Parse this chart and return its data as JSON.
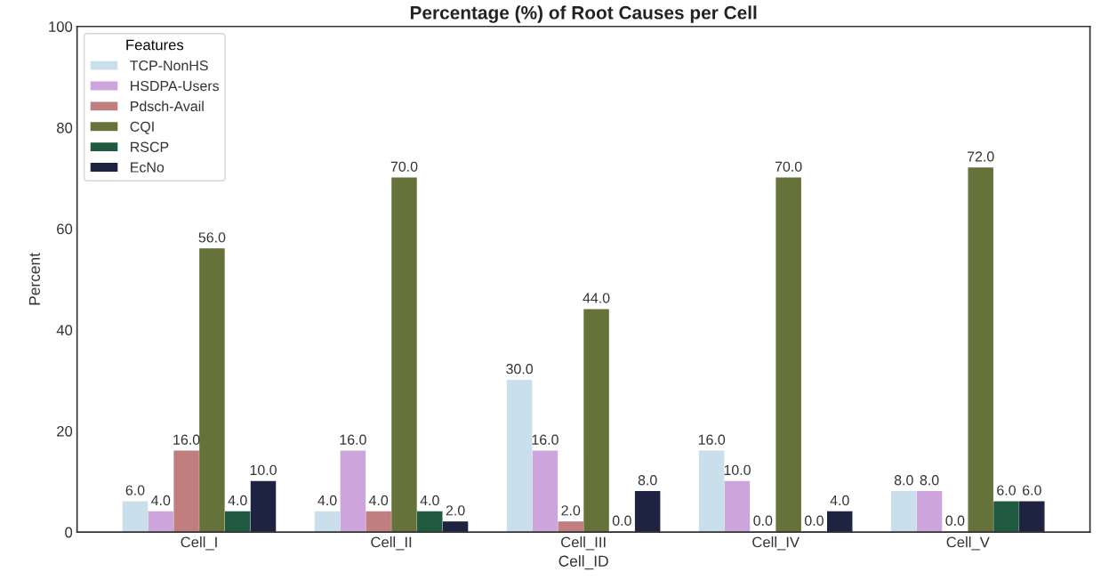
{
  "chart_data": {
    "type": "bar",
    "title": "Percentage (%) of Root Causes per Cell",
    "xlabel": "Cell_ID",
    "ylabel": "Percent",
    "categories": [
      "Cell_I",
      "Cell_II",
      "Cell_III",
      "Cell_IV",
      "Cell_V"
    ],
    "series": [
      {
        "name": "TCP-NonHS",
        "color": "#c9e0ec",
        "values": [
          6,
          4,
          30,
          16,
          8
        ],
        "value_labels": [
          "6.0",
          "4.0",
          "30.0",
          "16.0",
          "8.0"
        ]
      },
      {
        "name": "HSDPA-Users",
        "color": "#cda5dc",
        "values": [
          4,
          16,
          16,
          10,
          8
        ],
        "value_labels": [
          "4.0",
          "16.0",
          "16.0",
          "10.0",
          "8.0"
        ]
      },
      {
        "name": "Pdsch-Avail",
        "color": "#c07e7e",
        "values": [
          16,
          4,
          2,
          0,
          0
        ],
        "value_labels": [
          "16.0",
          "4.0",
          "2.0",
          "0.0",
          "0.0"
        ]
      },
      {
        "name": "CQI",
        "color": "#65723a",
        "values": [
          56,
          70,
          44,
          70,
          72
        ],
        "value_labels": [
          "56.0",
          "70.0",
          "44.0",
          "70.0",
          "72.0"
        ]
      },
      {
        "name": "RSCP",
        "color": "#1f5a40",
        "values": [
          4,
          4,
          0,
          0,
          6
        ],
        "value_labels": [
          "4.0",
          "4.0",
          "0.0",
          "0.0",
          "6.0"
        ]
      },
      {
        "name": "EcNo",
        "color": "#1d2340",
        "values": [
          10,
          2,
          8,
          4,
          6
        ],
        "value_labels": [
          "10.0",
          "2.0",
          "8.0",
          "4.0",
          "6.0"
        ]
      }
    ],
    "ylim": [
      0,
      100
    ],
    "yticks": [
      0,
      20,
      40,
      60,
      80,
      100
    ],
    "grid": false,
    "legend": "top left",
    "legend_title": "Features"
  }
}
